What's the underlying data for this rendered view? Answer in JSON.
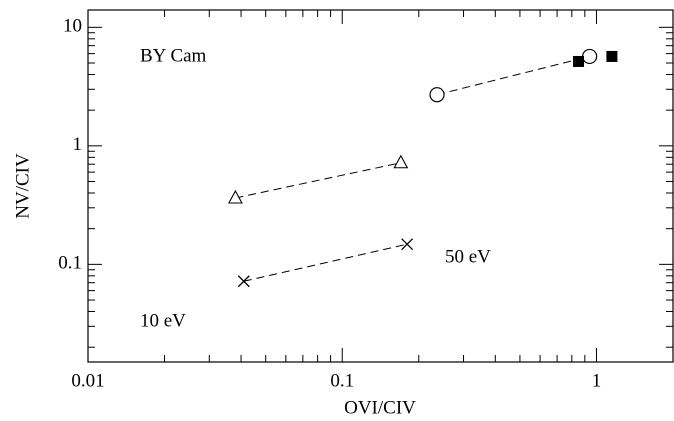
{
  "chart_data": {
    "type": "scatter",
    "xlabel": "OVI/CIV",
    "ylabel": "NV/CIV",
    "xscale": "log",
    "yscale": "log",
    "xlim": [
      0.01,
      2
    ],
    "ylim": [
      0.015,
      14
    ],
    "xticks": [
      0.01,
      0.1,
      1
    ],
    "yticks": [
      0.1,
      1,
      10
    ],
    "xminorticks": [
      0.02,
      0.03,
      0.04,
      0.05,
      0.06,
      0.07,
      0.08,
      0.09,
      0.2,
      0.3,
      0.4,
      0.5,
      0.6,
      0.7,
      0.8,
      0.9,
      2
    ],
    "yminorticks": [
      0.02,
      0.03,
      0.04,
      0.05,
      0.06,
      0.07,
      0.08,
      0.09,
      0.2,
      0.3,
      0.4,
      0.5,
      0.6,
      0.7,
      0.8,
      0.9,
      2,
      3,
      4,
      5,
      6,
      7,
      8,
      9
    ],
    "annotations": [
      "BY Cam",
      "50 eV",
      "10 eV"
    ],
    "series": [
      {
        "marker": "circle",
        "color": "#000000",
        "line": "dashed",
        "x": [
          0.236,
          0.94
        ],
        "values": [
          2.7,
          5.68
        ]
      },
      {
        "marker": "square",
        "color": "#000000",
        "line": "none",
        "x": [
          0.85,
          1.15
        ],
        "values": [
          5.15,
          5.68
        ]
      },
      {
        "marker": "triangle",
        "color": "#000000",
        "line": "dashed",
        "x": [
          0.038,
          0.17
        ],
        "values": [
          0.363,
          0.72
        ]
      },
      {
        "marker": "cross",
        "color": "#000000",
        "line": "dashed",
        "x": [
          0.041,
          0.18
        ],
        "values": [
          0.072,
          0.148
        ]
      }
    ]
  }
}
